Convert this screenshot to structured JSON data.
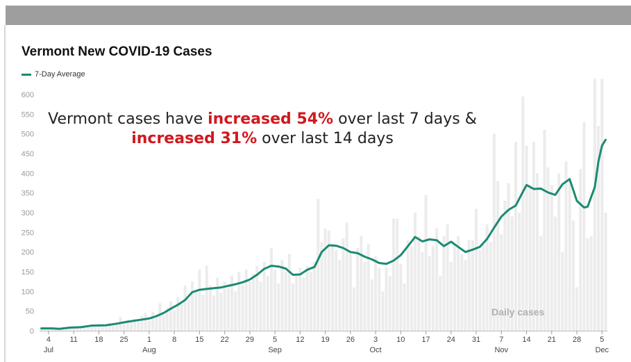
{
  "chart_data": {
    "type": "bar+line",
    "title": "Vermont New COVID-19 Cases",
    "legend": [
      {
        "name": "7-Day Average",
        "color": "#1b8a73"
      }
    ],
    "annotation": {
      "line1_prefix": "Vermont cases have ",
      "line1_highlight": "increased 54%",
      "line1_suffix": " over last 7 days &",
      "line2_highlight": "increased 31%",
      "line2_suffix": " over last 14 days"
    },
    "bars_label": "Daily cases",
    "ylim": [
      0,
      600
    ],
    "y_ticks": [
      0,
      50,
      100,
      150,
      200,
      250,
      300,
      350,
      400,
      450,
      500,
      550,
      600
    ],
    "x_start": "2020-07-02",
    "x_end": "2020-12-06",
    "x_ticks": [
      {
        "date": "2020-07-04",
        "day": "4",
        "month": "Jul"
      },
      {
        "date": "2020-07-11",
        "day": "11"
      },
      {
        "date": "2020-07-18",
        "day": "18"
      },
      {
        "date": "2020-07-25",
        "day": "25"
      },
      {
        "date": "2020-08-01",
        "day": "1",
        "month": "Aug"
      },
      {
        "date": "2020-08-08",
        "day": "8"
      },
      {
        "date": "2020-08-15",
        "day": "15"
      },
      {
        "date": "2020-08-22",
        "day": "22"
      },
      {
        "date": "2020-08-29",
        "day": "29"
      },
      {
        "date": "2020-09-05",
        "day": "5",
        "month": "Sep"
      },
      {
        "date": "2020-09-12",
        "day": "12"
      },
      {
        "date": "2020-09-19",
        "day": "19"
      },
      {
        "date": "2020-09-26",
        "day": "26"
      },
      {
        "date": "2020-10-03",
        "day": "3",
        "month": "Oct"
      },
      {
        "date": "2020-10-10",
        "day": "10"
      },
      {
        "date": "2020-10-17",
        "day": "17"
      },
      {
        "date": "2020-10-24",
        "day": "24"
      },
      {
        "date": "2020-10-31",
        "day": "31"
      },
      {
        "date": "2020-11-07",
        "day": "7",
        "month": "Nov"
      },
      {
        "date": "2020-11-14",
        "day": "14"
      },
      {
        "date": "2020-11-21",
        "day": "21"
      },
      {
        "date": "2020-11-28",
        "day": "28"
      },
      {
        "date": "2020-12-05",
        "day": "5",
        "month": "Dec"
      }
    ],
    "avg_series": {
      "name": "7-Day Average",
      "points": [
        [
          "2020-07-02",
          6
        ],
        [
          "2020-07-05",
          6
        ],
        [
          "2020-07-07",
          5
        ],
        [
          "2020-07-10",
          8
        ],
        [
          "2020-07-13",
          9
        ],
        [
          "2020-07-16",
          13
        ],
        [
          "2020-07-20",
          14
        ],
        [
          "2020-07-23",
          18
        ],
        [
          "2020-07-26",
          23
        ],
        [
          "2020-07-29",
          27
        ],
        [
          "2020-08-01",
          31
        ],
        [
          "2020-08-03",
          37
        ],
        [
          "2020-08-05",
          45
        ],
        [
          "2020-08-07",
          56
        ],
        [
          "2020-08-09",
          66
        ],
        [
          "2020-08-11",
          78
        ],
        [
          "2020-08-13",
          98
        ],
        [
          "2020-08-15",
          104
        ],
        [
          "2020-08-17",
          106
        ],
        [
          "2020-08-19",
          108
        ],
        [
          "2020-08-21",
          110
        ],
        [
          "2020-08-23",
          114
        ],
        [
          "2020-08-25",
          118
        ],
        [
          "2020-08-27",
          123
        ],
        [
          "2020-08-29",
          130
        ],
        [
          "2020-08-31",
          142
        ],
        [
          "2020-09-02",
          157
        ],
        [
          "2020-09-04",
          165
        ],
        [
          "2020-09-06",
          163
        ],
        [
          "2020-09-08",
          158
        ],
        [
          "2020-09-10",
          142
        ],
        [
          "2020-09-12",
          143
        ],
        [
          "2020-09-14",
          155
        ],
        [
          "2020-09-16",
          162
        ],
        [
          "2020-09-18",
          200
        ],
        [
          "2020-09-20",
          217
        ],
        [
          "2020-09-22",
          216
        ],
        [
          "2020-09-24",
          210
        ],
        [
          "2020-09-26",
          200
        ],
        [
          "2020-09-28",
          197
        ],
        [
          "2020-09-30",
          188
        ],
        [
          "2020-10-02",
          181
        ],
        [
          "2020-10-04",
          172
        ],
        [
          "2020-10-06",
          170
        ],
        [
          "2020-10-08",
          178
        ],
        [
          "2020-10-10",
          192
        ],
        [
          "2020-10-12",
          215
        ],
        [
          "2020-10-14",
          238
        ],
        [
          "2020-10-16",
          227
        ],
        [
          "2020-10-18",
          232
        ],
        [
          "2020-10-20",
          230
        ],
        [
          "2020-10-22",
          215
        ],
        [
          "2020-10-24",
          226
        ],
        [
          "2020-10-26",
          213
        ],
        [
          "2020-10-28",
          200
        ],
        [
          "2020-10-30",
          206
        ],
        [
          "2020-11-01",
          213
        ],
        [
          "2020-11-03",
          233
        ],
        [
          "2020-11-05",
          262
        ],
        [
          "2020-11-07",
          290
        ],
        [
          "2020-11-09",
          307
        ],
        [
          "2020-11-11",
          318
        ],
        [
          "2020-11-13",
          353
        ],
        [
          "2020-11-14",
          370
        ],
        [
          "2020-11-16",
          360
        ],
        [
          "2020-11-18",
          361
        ],
        [
          "2020-11-20",
          351
        ],
        [
          "2020-11-22",
          345
        ],
        [
          "2020-11-24",
          372
        ],
        [
          "2020-11-26",
          385
        ],
        [
          "2020-11-28",
          330
        ],
        [
          "2020-11-30",
          313
        ],
        [
          "2020-12-01",
          315
        ],
        [
          "2020-12-02",
          340
        ],
        [
          "2020-12-03",
          365
        ],
        [
          "2020-12-04",
          430
        ],
        [
          "2020-12-05",
          470
        ],
        [
          "2020-12-06",
          485
        ]
      ]
    },
    "daily_bars": [
      [
        "2020-07-02",
        5
      ],
      [
        "2020-07-03",
        8
      ],
      [
        "2020-07-04",
        3
      ],
      [
        "2020-07-05",
        6
      ],
      [
        "2020-07-06",
        4
      ],
      [
        "2020-07-07",
        7
      ],
      [
        "2020-07-08",
        5
      ],
      [
        "2020-07-09",
        9
      ],
      [
        "2020-07-10",
        10
      ],
      [
        "2020-07-11",
        6
      ],
      [
        "2020-07-12",
        8
      ],
      [
        "2020-07-13",
        12
      ],
      [
        "2020-07-14",
        9
      ],
      [
        "2020-07-15",
        14
      ],
      [
        "2020-07-16",
        16
      ],
      [
        "2020-07-17",
        11
      ],
      [
        "2020-07-18",
        18
      ],
      [
        "2020-07-19",
        12
      ],
      [
        "2020-07-20",
        15
      ],
      [
        "2020-07-21",
        20
      ],
      [
        "2020-07-22",
        14
      ],
      [
        "2020-07-23",
        22
      ],
      [
        "2020-07-24",
        35
      ],
      [
        "2020-07-25",
        18
      ],
      [
        "2020-07-26",
        27
      ],
      [
        "2020-07-27",
        22
      ],
      [
        "2020-07-28",
        30
      ],
      [
        "2020-07-29",
        25
      ],
      [
        "2020-07-30",
        38
      ],
      [
        "2020-07-31",
        45
      ],
      [
        "2020-08-01",
        26
      ],
      [
        "2020-08-02",
        48
      ],
      [
        "2020-08-03",
        38
      ],
      [
        "2020-08-04",
        70
      ],
      [
        "2020-08-05",
        40
      ],
      [
        "2020-08-06",
        58
      ],
      [
        "2020-08-07",
        75
      ],
      [
        "2020-08-08",
        52
      ],
      [
        "2020-08-09",
        86
      ],
      [
        "2020-08-10",
        68
      ],
      [
        "2020-08-11",
        115
      ],
      [
        "2020-08-12",
        80
      ],
      [
        "2020-08-13",
        125
      ],
      [
        "2020-08-14",
        100
      ],
      [
        "2020-08-15",
        155
      ],
      [
        "2020-08-16",
        92
      ],
      [
        "2020-08-17",
        165
      ],
      [
        "2020-08-18",
        115
      ],
      [
        "2020-08-19",
        90
      ],
      [
        "2020-08-20",
        135
      ],
      [
        "2020-08-21",
        96
      ],
      [
        "2020-08-22",
        125
      ],
      [
        "2020-08-23",
        108
      ],
      [
        "2020-08-24",
        140
      ],
      [
        "2020-08-25",
        100
      ],
      [
        "2020-08-26",
        150
      ],
      [
        "2020-08-27",
        115
      ],
      [
        "2020-08-28",
        155
      ],
      [
        "2020-08-29",
        125
      ],
      [
        "2020-08-30",
        145
      ],
      [
        "2020-08-31",
        165
      ],
      [
        "2020-09-01",
        125
      ],
      [
        "2020-09-02",
        175
      ],
      [
        "2020-09-03",
        140
      ],
      [
        "2020-09-04",
        210
      ],
      [
        "2020-09-05",
        155
      ],
      [
        "2020-09-06",
        120
      ],
      [
        "2020-09-07",
        180
      ],
      [
        "2020-09-08",
        150
      ],
      [
        "2020-09-09",
        195
      ],
      [
        "2020-09-10",
        120
      ],
      [
        "2020-09-11",
        140
      ],
      [
        "2020-09-12",
        160
      ],
      [
        "2020-09-13",
        135
      ],
      [
        "2020-09-14",
        165
      ],
      [
        "2020-09-15",
        150
      ],
      [
        "2020-09-16",
        175
      ],
      [
        "2020-09-17",
        335
      ],
      [
        "2020-09-18",
        225
      ],
      [
        "2020-09-19",
        260
      ],
      [
        "2020-09-20",
        255
      ],
      [
        "2020-09-21",
        220
      ],
      [
        "2020-09-22",
        205
      ],
      [
        "2020-09-23",
        180
      ],
      [
        "2020-09-24",
        235
      ],
      [
        "2020-09-25",
        275
      ],
      [
        "2020-09-26",
        200
      ],
      [
        "2020-09-27",
        110
      ],
      [
        "2020-09-28",
        210
      ],
      [
        "2020-09-29",
        240
      ],
      [
        "2020-09-30",
        175
      ],
      [
        "2020-10-01",
        220
      ],
      [
        "2020-10-02",
        130
      ],
      [
        "2020-10-03",
        190
      ],
      [
        "2020-10-04",
        160
      ],
      [
        "2020-10-05",
        100
      ],
      [
        "2020-10-06",
        160
      ],
      [
        "2020-10-07",
        140
      ],
      [
        "2020-10-08",
        285
      ],
      [
        "2020-10-09",
        285
      ],
      [
        "2020-10-10",
        170
      ],
      [
        "2020-10-11",
        120
      ],
      [
        "2020-10-12",
        230
      ],
      [
        "2020-10-13",
        215
      ],
      [
        "2020-10-14",
        300
      ],
      [
        "2020-10-15",
        240
      ],
      [
        "2020-10-16",
        200
      ],
      [
        "2020-10-17",
        345
      ],
      [
        "2020-10-18",
        190
      ],
      [
        "2020-10-19",
        215
      ],
      [
        "2020-10-20",
        260
      ],
      [
        "2020-10-21",
        140
      ],
      [
        "2020-10-22",
        240
      ],
      [
        "2020-10-23",
        270
      ],
      [
        "2020-10-24",
        175
      ],
      [
        "2020-10-25",
        220
      ],
      [
        "2020-10-26",
        240
      ],
      [
        "2020-10-27",
        195
      ],
      [
        "2020-10-28",
        180
      ],
      [
        "2020-10-29",
        230
      ],
      [
        "2020-10-30",
        230
      ],
      [
        "2020-10-31",
        310
      ],
      [
        "2020-11-01",
        205
      ],
      [
        "2020-11-02",
        220
      ],
      [
        "2020-11-03",
        270
      ],
      [
        "2020-11-04",
        225
      ],
      [
        "2020-11-05",
        500
      ],
      [
        "2020-11-06",
        380
      ],
      [
        "2020-11-07",
        245
      ],
      [
        "2020-11-08",
        330
      ],
      [
        "2020-11-09",
        375
      ],
      [
        "2020-11-10",
        290
      ],
      [
        "2020-11-11",
        480
      ],
      [
        "2020-11-12",
        300
      ],
      [
        "2020-11-13",
        595
      ],
      [
        "2020-11-14",
        470
      ],
      [
        "2020-11-15",
        370
      ],
      [
        "2020-11-16",
        480
      ],
      [
        "2020-11-17",
        400
      ],
      [
        "2020-11-18",
        240
      ],
      [
        "2020-11-19",
        510
      ],
      [
        "2020-11-20",
        415
      ],
      [
        "2020-11-21",
        370
      ],
      [
        "2020-11-22",
        290
      ],
      [
        "2020-11-23",
        400
      ],
      [
        "2020-11-24",
        200
      ],
      [
        "2020-11-25",
        430
      ],
      [
        "2020-11-26",
        390
      ],
      [
        "2020-11-27",
        280
      ],
      [
        "2020-11-28",
        110
      ],
      [
        "2020-11-29",
        410
      ],
      [
        "2020-11-30",
        530
      ],
      [
        "2020-12-01",
        235
      ],
      [
        "2020-12-02",
        240
      ],
      [
        "2020-12-03",
        640
      ],
      [
        "2020-12-04",
        520
      ],
      [
        "2020-12-05",
        645
      ],
      [
        "2020-12-06",
        300
      ]
    ]
  }
}
